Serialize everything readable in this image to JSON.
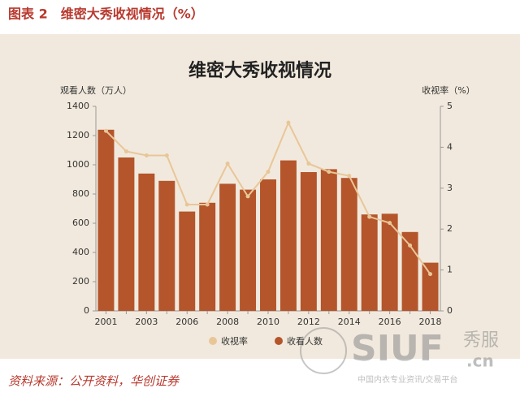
{
  "header": "图表 2　维密大秀收视情况（%）",
  "source": "资料来源：公开资料，华创证券",
  "watermark": {
    "brand": "SIUF",
    "cn": "秀服",
    "domain": ".cn",
    "slogan": "中国内衣专业资讯/交易平台"
  },
  "chart_data": {
    "type": "bar",
    "title": "维密大秀收视情况",
    "y_label": "观看人数（万人）",
    "y2_label": "收视率（%）",
    "categories": [
      "2001",
      null,
      "2003",
      null,
      "2006",
      null,
      "2008",
      null,
      "2010",
      null,
      "2012",
      null,
      "2014",
      null,
      "2016",
      null,
      "2018"
    ],
    "series": [
      {
        "name": "收视率",
        "type": "line",
        "axis": "y2",
        "color": "#e9c698",
        "values": [
          4.4,
          3.9,
          3.8,
          3.8,
          2.6,
          2.6,
          3.6,
          2.8,
          3.4,
          4.6,
          3.6,
          3.4,
          3.3,
          2.3,
          2.15,
          1.6,
          0.9
        ]
      },
      {
        "name": "收看人数",
        "type": "bar",
        "axis": "y",
        "color": "#b4552b",
        "values": [
          1240,
          1050,
          940,
          890,
          680,
          740,
          870,
          830,
          900,
          1030,
          950,
          970,
          910,
          660,
          665,
          540,
          330
        ]
      }
    ],
    "ylim": [
      0,
      1400
    ],
    "yticks": [
      0,
      200,
      400,
      600,
      800,
      1000,
      1200,
      1400
    ],
    "y2lim": [
      0,
      5
    ],
    "y2ticks": [
      0,
      1,
      2,
      3,
      4,
      5
    ]
  }
}
